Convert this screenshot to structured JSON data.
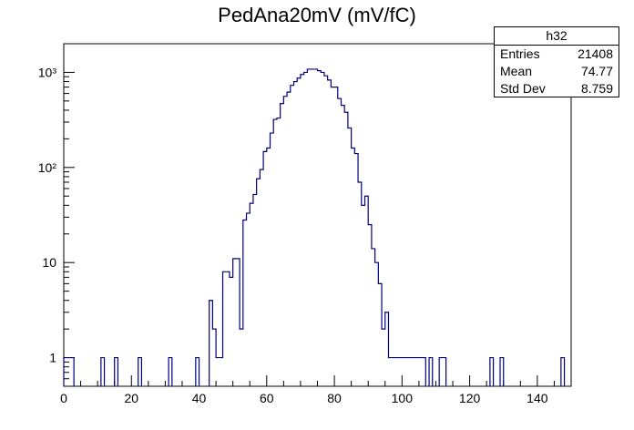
{
  "chart_data": {
    "type": "bar",
    "title": "PedAna20mV (mV/fC)",
    "xlabel": "",
    "ylabel": "",
    "xlim": [
      0,
      150
    ],
    "ylim": [
      0.5,
      2000
    ],
    "y_scale": "log",
    "histogram_name": "h32",
    "bin_width": 1,
    "x_ticks": [
      0,
      20,
      40,
      60,
      80,
      100,
      120,
      140
    ],
    "y_ticks": [
      "1",
      "10",
      "10²",
      "10³"
    ],
    "line_color": "#000080",
    "grid": false,
    "stats_box": {
      "title": "h32",
      "rows": [
        {
          "label": "Entries",
          "value": "21408"
        },
        {
          "label": "Mean",
          "value": "74.77"
        },
        {
          "label": "Std Dev",
          "value": "8.759"
        }
      ],
      "position": "top-right"
    },
    "x_bin_low": [
      0,
      1,
      2,
      11,
      15,
      22,
      31,
      39,
      43,
      44,
      45,
      46,
      47,
      48,
      49,
      50,
      51,
      52,
      53,
      54,
      55,
      56,
      57,
      58,
      59,
      60,
      61,
      62,
      63,
      64,
      65,
      66,
      67,
      68,
      69,
      70,
      71,
      72,
      73,
      74,
      75,
      76,
      77,
      78,
      79,
      80,
      81,
      82,
      83,
      84,
      85,
      86,
      87,
      88,
      89,
      90,
      91,
      92,
      93,
      94,
      95,
      96,
      97,
      98,
      99,
      100,
      101,
      102,
      103,
      104,
      105,
      106,
      108,
      111,
      112,
      126,
      129,
      147
    ],
    "counts": [
      1,
      1,
      1,
      1,
      1,
      1,
      1,
      1,
      4,
      2,
      1,
      1,
      8,
      8,
      7,
      11,
      11,
      2,
      28,
      33,
      42,
      52,
      76,
      95,
      147,
      160,
      230,
      320,
      330,
      470,
      560,
      620,
      730,
      800,
      870,
      950,
      1000,
      1080,
      1080,
      1080,
      1040,
      1000,
      920,
      830,
      700,
      700,
      530,
      450,
      380,
      260,
      160,
      140,
      70,
      40,
      50,
      25,
      14,
      10,
      6,
      2,
      3,
      1,
      1,
      1,
      1,
      1,
      1,
      1,
      1,
      1,
      1,
      1,
      1,
      1,
      1,
      1,
      1,
      1
    ]
  }
}
